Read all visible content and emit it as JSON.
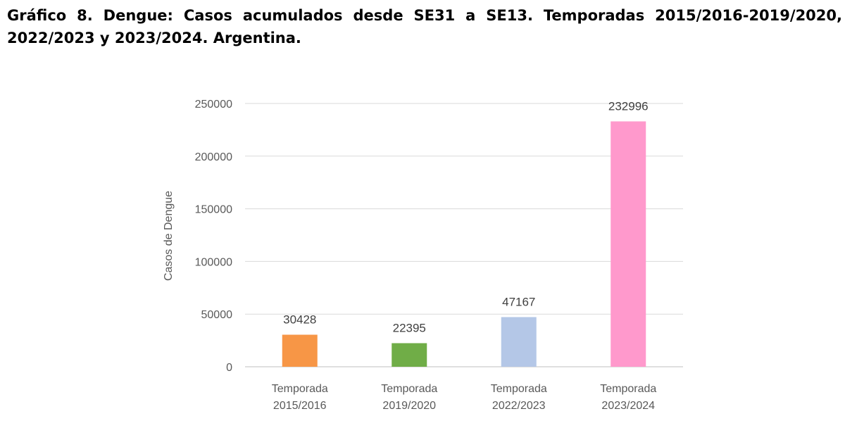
{
  "title": "Gráfico 8. Dengue: Casos acumulados desde SE31 a SE13. Temporadas 2015/2016-2019/2020, 2022/2023 y 2023/2024. Argentina.",
  "chart_data": {
    "type": "bar",
    "title": "Gráfico 8. Dengue: Casos acumulados desde SE31 a SE13. Temporadas 2015/2016-2019/2020, 2022/2023 y 2023/2024. Argentina.",
    "xlabel": "",
    "ylabel": "Casos de Dengue",
    "ylim": [
      0,
      250000
    ],
    "yticks": [
      0,
      50000,
      100000,
      150000,
      200000,
      250000
    ],
    "grid": true,
    "legend": "none",
    "categories": [
      [
        "Temporada",
        "2015/2016"
      ],
      [
        "Temporada",
        "2019/2020"
      ],
      [
        "Temporada",
        "2022/2023"
      ],
      [
        "Temporada",
        "2023/2024"
      ]
    ],
    "values": [
      30428,
      22395,
      47167,
      232996
    ],
    "colors": [
      "#F79646",
      "#70AD47",
      "#B4C7E7",
      "#FF99CC"
    ],
    "data_labels": [
      "30428",
      "22395",
      "47167",
      "232996"
    ]
  }
}
